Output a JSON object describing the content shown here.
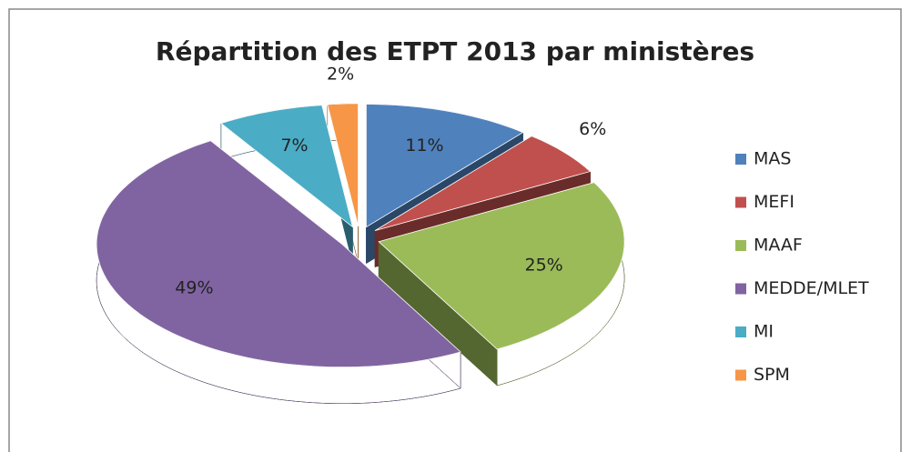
{
  "chart_data": {
    "type": "pie",
    "title": "Répartition des ETPT 2013 par ministères",
    "categories": [
      "MAS",
      "MEFI",
      "MAAF",
      "MEDDE/MLET",
      "MI",
      "SPM"
    ],
    "values": [
      11,
      6,
      25,
      49,
      7,
      2
    ],
    "value_labels": [
      "11%",
      "6%",
      "25%",
      "49%",
      "7%",
      "2%"
    ],
    "colors": [
      "#4f81bd",
      "#c0504d",
      "#9bbb59",
      "#8064a2",
      "#4bacc6",
      "#f79646"
    ],
    "legend": "right"
  }
}
